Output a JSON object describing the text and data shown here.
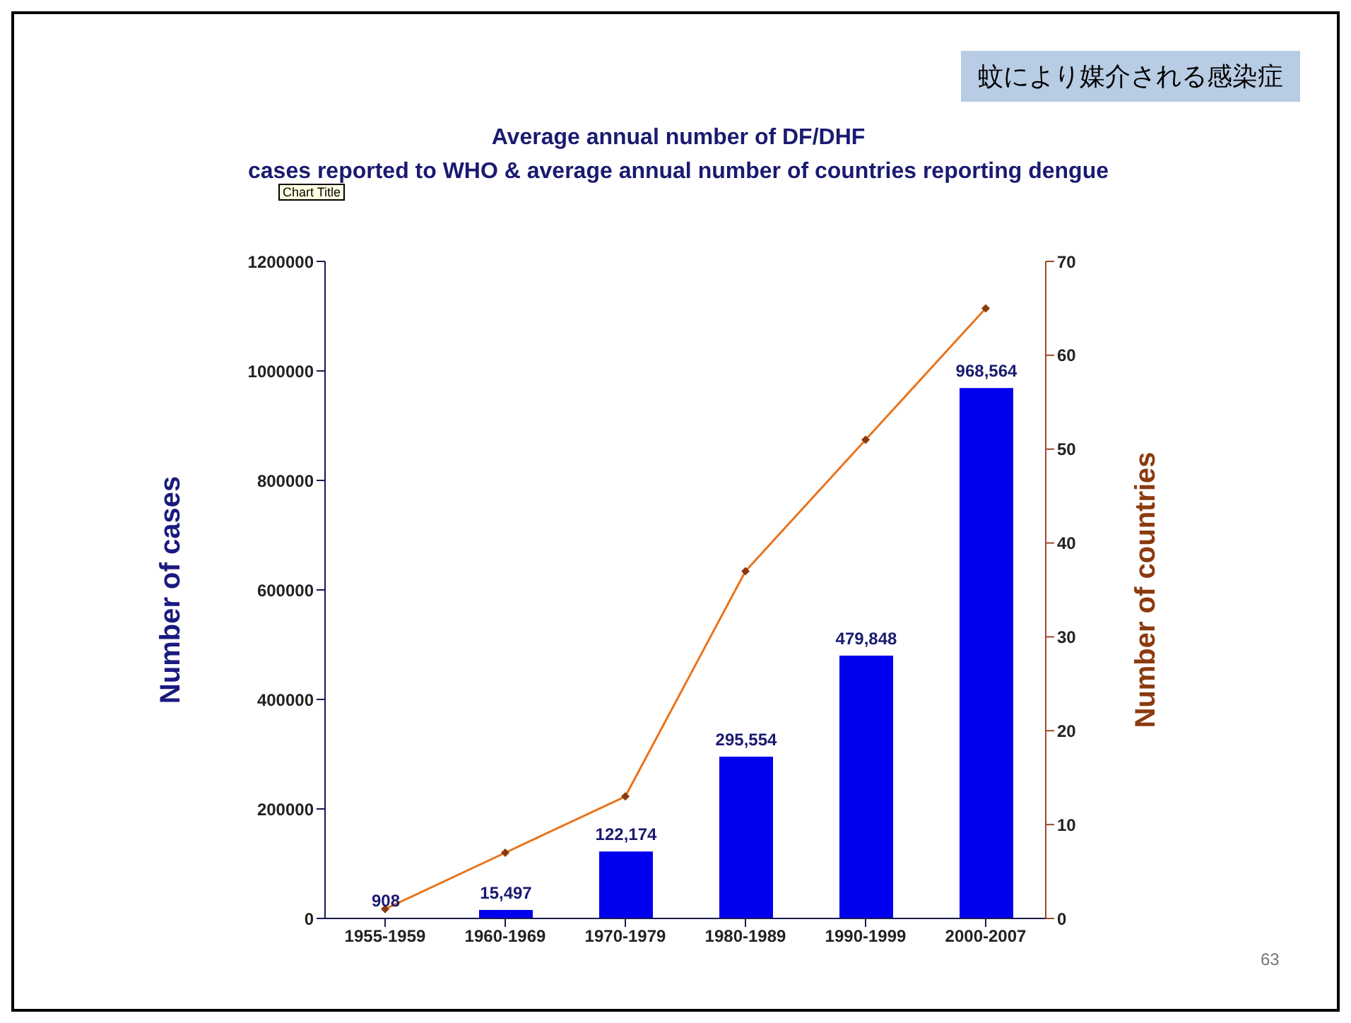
{
  "chart_data": {
    "type": "bar",
    "title": "Average annual number of DF/DHF\ncases reported to WHO & average annual number of countries reporting dengue",
    "subtitle": "蚊により媒介される感染症",
    "ylabel": "Number of cases",
    "y2label": "Number of countries",
    "categories": [
      "1955-1959",
      "1960-1969",
      "1970-1979",
      "1980-1989",
      "1990-1999",
      "2000-2007"
    ],
    "series": [
      {
        "color": "#0000ee",
        "values": [
          908,
          15497,
          122174,
          295554,
          479848,
          968564
        ],
        "value_labels": [
          "908",
          "15,497",
          "122,174",
          "295,554",
          "479,848",
          "968,564"
        ]
      },
      {
        "type": "line",
        "axis": "y2",
        "color": "#e8741c",
        "values": [
          1,
          7,
          13,
          37,
          51,
          65
        ],
        "marker": "diamond"
      }
    ],
    "ylim": [
      0,
      1200000
    ],
    "yticks": [
      0,
      200000,
      400000,
      600000,
      800000,
      1000000,
      1200000
    ],
    "y2lim": [
      0,
      70
    ],
    "y2ticks": [
      0,
      10,
      20,
      30,
      40,
      50,
      60,
      70
    ],
    "annotations": [
      "Chart Title",
      "63"
    ]
  }
}
